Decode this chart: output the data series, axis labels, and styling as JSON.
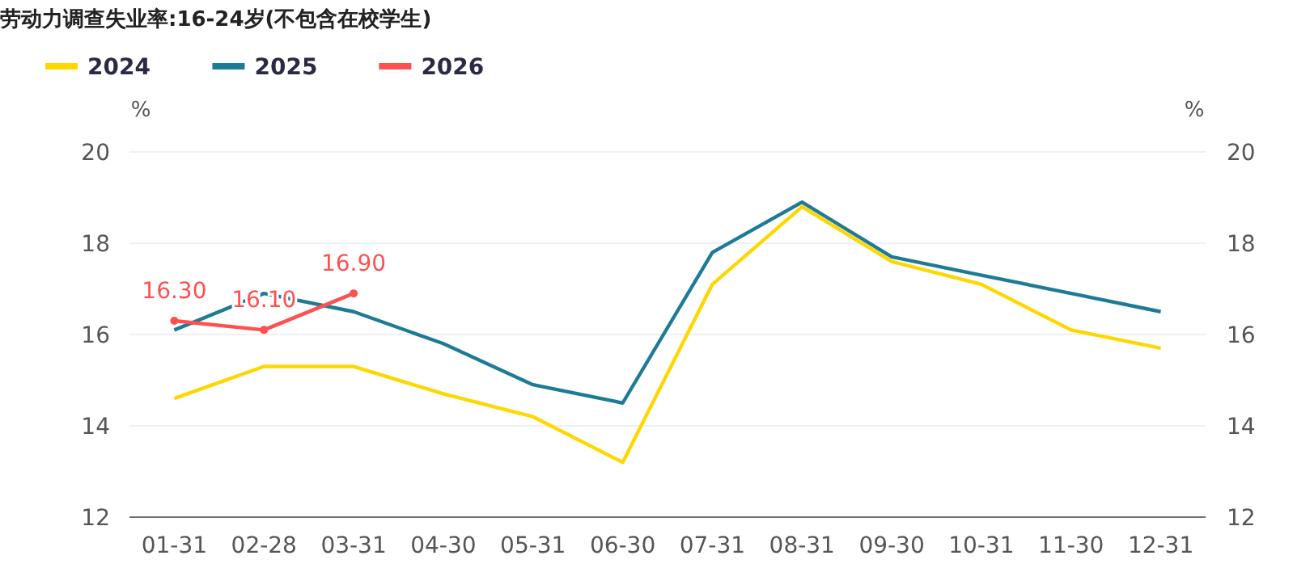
{
  "chart_data": {
    "type": "line",
    "title": "劳动力调查失业率:16-24岁(不包含在校学生)",
    "categories": [
      "01-31",
      "02-28",
      "03-31",
      "04-30",
      "05-31",
      "06-30",
      "07-31",
      "08-31",
      "09-30",
      "10-31",
      "11-30",
      "12-31"
    ],
    "series": [
      {
        "name": "2024",
        "color": "#ffd700",
        "values": [
          14.6,
          15.3,
          15.3,
          14.7,
          14.2,
          13.2,
          17.1,
          18.8,
          17.6,
          17.1,
          16.1,
          15.7
        ]
      },
      {
        "name": "2025",
        "color": "#1e7b96",
        "values": [
          16.1,
          16.9,
          16.5,
          15.8,
          14.9,
          14.5,
          17.8,
          18.9,
          17.7,
          17.3,
          16.9,
          16.5
        ]
      },
      {
        "name": "2026",
        "color": "#ff5050",
        "marker": "circle",
        "values": [
          16.3,
          16.1,
          16.9,
          null,
          null,
          null,
          null,
          null,
          null,
          null,
          null,
          null
        ],
        "value_labels": [
          "16.30",
          "16.10",
          "16.90",
          null,
          null,
          null,
          null,
          null,
          null,
          null,
          null,
          null
        ]
      }
    ],
    "ylabel": "%",
    "y2label": "%",
    "ylim": [
      12,
      20
    ],
    "yticks": [
      12,
      14,
      16,
      18,
      20
    ],
    "y2lim": [
      12,
      20
    ],
    "y2ticks": [
      12,
      14,
      16,
      18,
      20
    ],
    "grid": "y",
    "legend": "top left",
    "line_style": "solid"
  }
}
